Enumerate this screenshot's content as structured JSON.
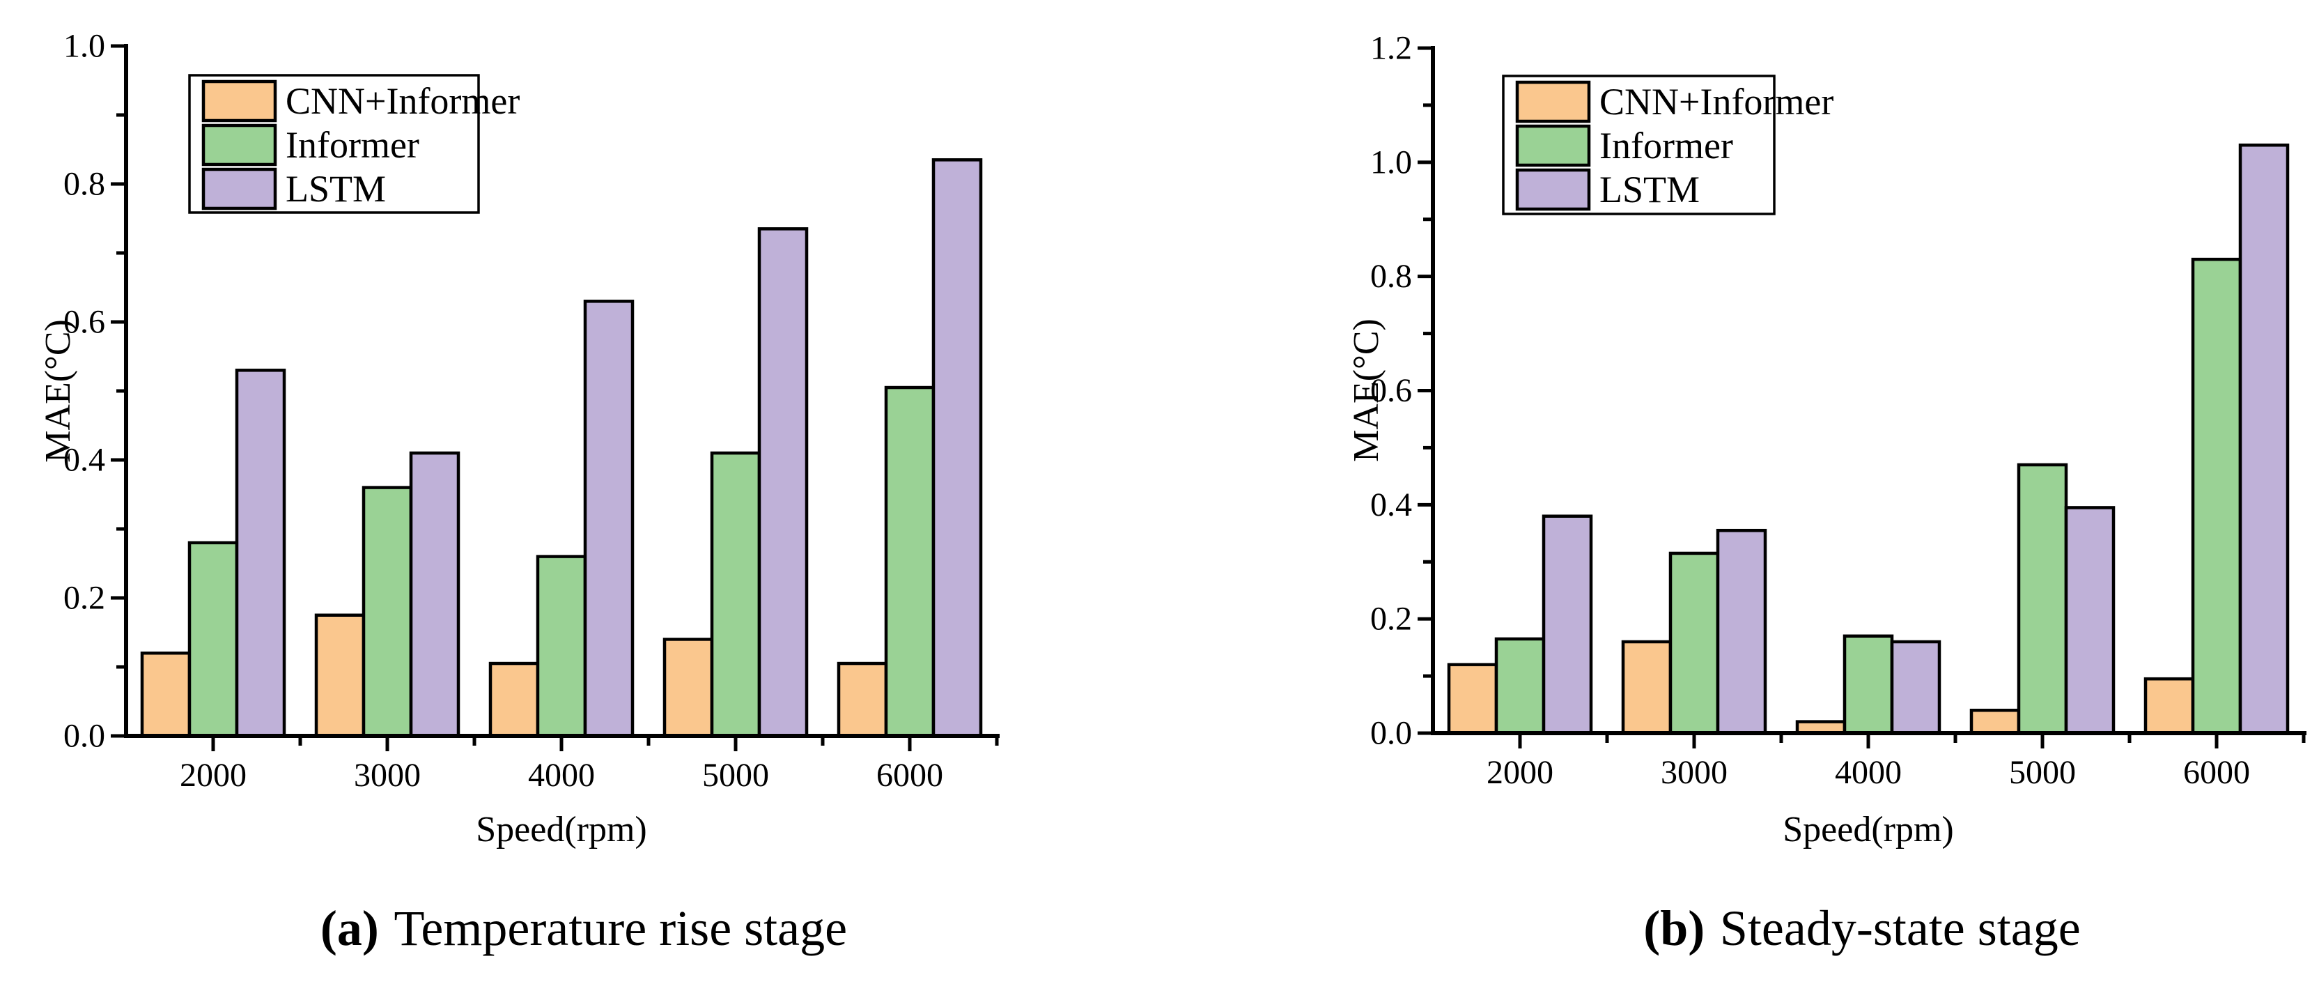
{
  "figure": {
    "background": "#ffffff",
    "axis_color": "#000000",
    "bar_edge_color": "#000000"
  },
  "chart_data": [
    {
      "type": "bar",
      "panel_label": "(a)",
      "title": "Temperature rise stage",
      "xlabel": "Speed(rpm)",
      "ylabel": "MAE(°C)",
      "categories": [
        "2000",
        "3000",
        "4000",
        "5000",
        "6000"
      ],
      "ylim": [
        0,
        1.0
      ],
      "ytick_step": 0.2,
      "grid": false,
      "legend_position": "upper-left-inside",
      "series": [
        {
          "name": "CNN+Informer",
          "color": "#FAC78E",
          "values": [
            0.12,
            0.175,
            0.105,
            0.14,
            0.105
          ]
        },
        {
          "name": "Informer",
          "color": "#9AD295",
          "values": [
            0.28,
            0.36,
            0.26,
            0.41,
            0.505
          ]
        },
        {
          "name": "LSTM",
          "color": "#BFB1D8",
          "values": [
            0.53,
            0.41,
            0.63,
            0.735,
            0.835
          ]
        }
      ]
    },
    {
      "type": "bar",
      "panel_label": "(b)",
      "title": "Steady-state stage",
      "xlabel": "Speed(rpm)",
      "ylabel": "MAE(°C)",
      "categories": [
        "2000",
        "3000",
        "4000",
        "5000",
        "6000"
      ],
      "ylim": [
        0,
        1.2
      ],
      "ytick_step": 0.2,
      "grid": false,
      "legend_position": "upper-left-inside",
      "series": [
        {
          "name": "CNN+Informer",
          "color": "#FAC78E",
          "values": [
            0.12,
            0.16,
            0.02,
            0.04,
            0.095
          ]
        },
        {
          "name": "Informer",
          "color": "#9AD295",
          "values": [
            0.165,
            0.315,
            0.17,
            0.47,
            0.83
          ]
        },
        {
          "name": "LSTM",
          "color": "#BFB1D8",
          "values": [
            0.38,
            0.355,
            0.16,
            0.395,
            1.03
          ]
        }
      ]
    }
  ]
}
